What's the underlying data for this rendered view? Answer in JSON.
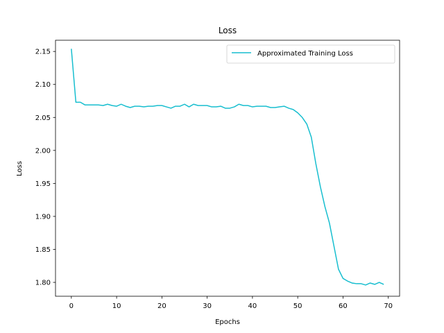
{
  "chart_data": {
    "type": "line",
    "title": "Loss",
    "xlabel": "Epochs",
    "ylabel": "Loss",
    "xlim": [
      -3.5,
      72.5
    ],
    "ylim": [
      1.779,
      2.167
    ],
    "xticks": [
      0,
      10,
      20,
      30,
      40,
      50,
      60,
      70
    ],
    "yticks": [
      1.8,
      1.85,
      1.9,
      1.95,
      2.0,
      2.05,
      2.1,
      2.15
    ],
    "grid": false,
    "legend_position": "top-right",
    "series": [
      {
        "name": "Approximated Training Loss",
        "color": "#17becf",
        "x": [
          0,
          1,
          2,
          3,
          4,
          5,
          6,
          7,
          8,
          9,
          10,
          11,
          12,
          13,
          14,
          15,
          16,
          17,
          18,
          19,
          20,
          21,
          22,
          23,
          24,
          25,
          26,
          27,
          28,
          29,
          30,
          31,
          32,
          33,
          34,
          35,
          36,
          37,
          38,
          39,
          40,
          41,
          42,
          43,
          44,
          45,
          46,
          47,
          48,
          49,
          50,
          51,
          52,
          53,
          54,
          55,
          56,
          57,
          58,
          59,
          60,
          61,
          62,
          63,
          64,
          65,
          66,
          67,
          68,
          69
        ],
        "values": [
          2.154,
          2.073,
          2.073,
          2.069,
          2.069,
          2.069,
          2.069,
          2.068,
          2.07,
          2.068,
          2.067,
          2.07,
          2.067,
          2.065,
          2.067,
          2.067,
          2.066,
          2.067,
          2.067,
          2.068,
          2.068,
          2.066,
          2.064,
          2.067,
          2.067,
          2.07,
          2.066,
          2.07,
          2.068,
          2.068,
          2.068,
          2.066,
          2.066,
          2.067,
          2.064,
          2.064,
          2.066,
          2.07,
          2.068,
          2.068,
          2.066,
          2.067,
          2.067,
          2.067,
          2.065,
          2.065,
          2.066,
          2.067,
          2.064,
          2.062,
          2.057,
          2.05,
          2.04,
          2.02,
          1.98,
          1.945,
          1.915,
          1.89,
          1.855,
          1.82,
          1.806,
          1.802,
          1.799,
          1.798,
          1.798,
          1.796,
          1.799,
          1.797,
          1.8,
          1.797
        ]
      }
    ]
  }
}
